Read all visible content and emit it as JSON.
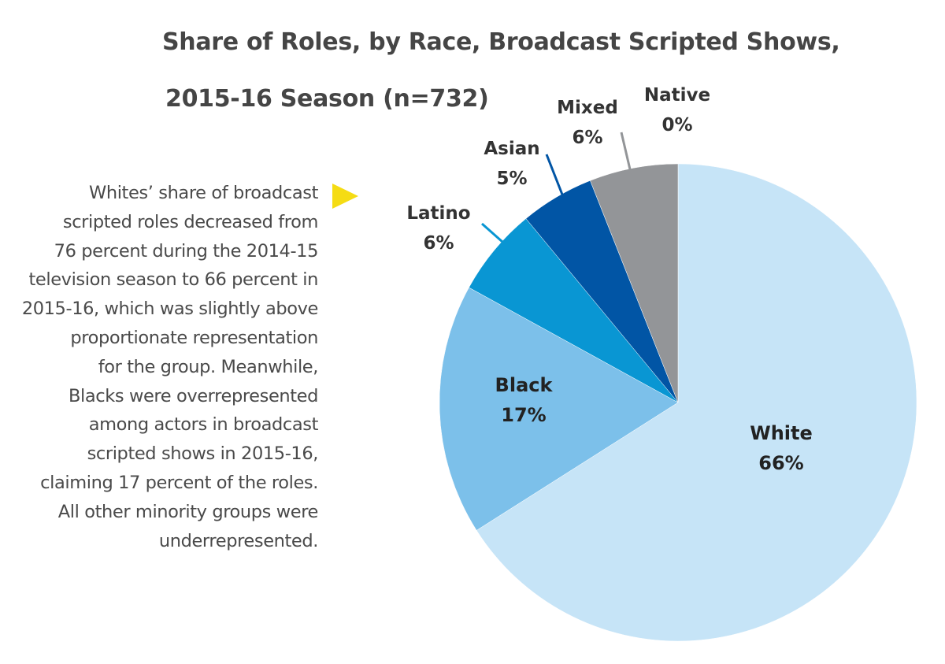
{
  "title": {
    "line1": "Share of Roles, by Race, Broadcast Scripted Shows,",
    "line2": "2015-16 Season (n=732)"
  },
  "caption": {
    "lines": [
      "Whites’ share of broadcast",
      "scripted roles decreased from",
      "76 percent during the 2014-15",
      "television season to 66 percent in",
      "2015-16, which was slightly above",
      "proportionate representation",
      "for the group. Meanwhile,",
      "Blacks were overrepresented",
      "among actors in broadcast",
      "scripted shows in 2015-16,",
      "claiming 17 percent of the roles.",
      "All other minority groups were",
      "underrepresented."
    ]
  },
  "pointer_icon": "triangle-right-icon",
  "pointer_color": "#f5dc14",
  "chart_data": {
    "type": "pie",
    "title": "Share of Roles, by Race, Broadcast Scripted Shows, 2015-16 Season (n=732)",
    "slices": [
      {
        "name": "White",
        "value": 66,
        "label": "66%",
        "color": "#c6e4f7",
        "label_position": "inside"
      },
      {
        "name": "Black",
        "value": 17,
        "label": "17%",
        "color": "#7cc0ea",
        "label_position": "inside"
      },
      {
        "name": "Latino",
        "value": 6,
        "label": "6%",
        "color": "#0996d3",
        "label_position": "outside"
      },
      {
        "name": "Asian",
        "value": 5,
        "label": "5%",
        "color": "#0155a5",
        "label_position": "outside"
      },
      {
        "name": "Mixed",
        "value": 6,
        "label": "6%",
        "color": "#939598",
        "label_position": "outside"
      },
      {
        "name": "Native",
        "value": 0,
        "label": "0%",
        "color": "#939598",
        "label_position": "outside"
      }
    ],
    "start_angle": "12 o'clock",
    "direction": "clockwise",
    "legend": "none"
  }
}
